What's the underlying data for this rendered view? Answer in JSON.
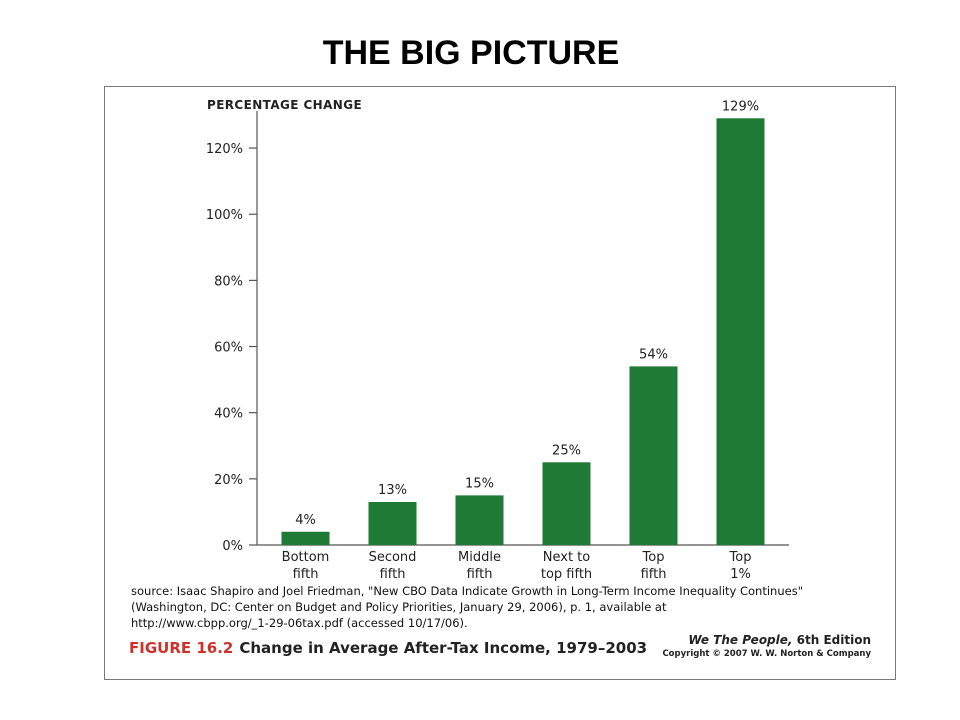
{
  "slide": {
    "title": "THE BIG PICTURE"
  },
  "chart_data": {
    "type": "bar",
    "ylabel": "PERCENTAGE CHANGE",
    "categories": [
      [
        "Bottom",
        "fifth"
      ],
      [
        "Second",
        "fifth"
      ],
      [
        "Middle",
        "fifth"
      ],
      [
        "Next to",
        "top fifth"
      ],
      [
        "Top",
        "fifth"
      ],
      [
        "Top",
        "1%"
      ]
    ],
    "values": [
      4,
      13,
      15,
      25,
      54,
      129
    ],
    "value_labels": [
      "4%",
      "13%",
      "15%",
      "25%",
      "54%",
      "129%"
    ],
    "yticks": [
      0,
      20,
      40,
      60,
      80,
      100,
      120
    ],
    "ytick_labels": [
      "0%",
      "20%",
      "40%",
      "60%",
      "80%",
      "100%",
      "120%"
    ],
    "ylim": [
      0,
      130
    ],
    "bar_color": "#1e7a34",
    "grid": false
  },
  "figure": {
    "source_lines": [
      "source: Isaac Shapiro and Joel Friedman, \"New CBO Data Indicate Growth in Long-Term Income Inequality Continues\"",
      "(Washington, DC: Center on Budget and Policy Priorities, January 29, 2006), p. 1, available at",
      "http://www.cbpp.org/_1-29-06tax.pdf (accessed 10/17/06)."
    ],
    "number": "FIGURE 16.2",
    "caption": "Change in Average After-Tax Income, 1979–2003",
    "book_title": "We The People,",
    "edition": "6th Edition",
    "copyright": "Copyright © 2007 W. W. Norton & Company"
  }
}
